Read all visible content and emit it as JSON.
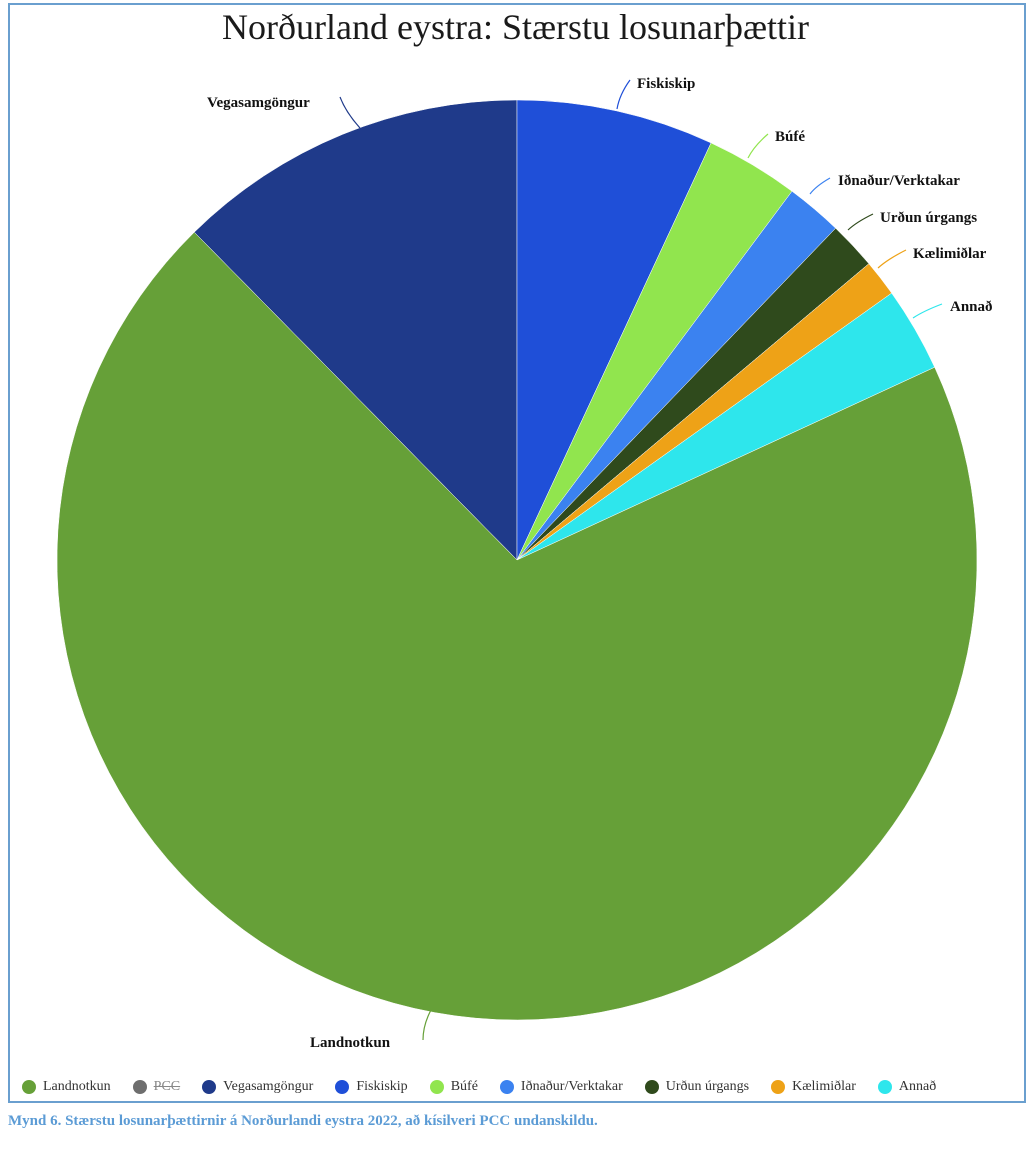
{
  "caption": "Mynd 6. Stærstu losunarþættirnir á Norðurlandi eystra 2022, að kísilveri PCC undanskildu.",
  "chart_data": {
    "type": "pie",
    "title": "Norðurland eystra: Stærstu losunarþættir",
    "legend_position": "bottom",
    "slices": [
      {
        "name": "Landnotkun",
        "value": 70.2,
        "color": "#66a038",
        "visible": true
      },
      {
        "name": "PCC",
        "value": 0,
        "color": "#6e6e6e",
        "visible": false
      },
      {
        "name": "Vegasamgöngur",
        "value": 12.5,
        "color": "#1f3a8a",
        "visible": true
      },
      {
        "name": "Fiskiskip",
        "value": 7.0,
        "color": "#1f4fd8",
        "visible": true
      },
      {
        "name": "Búfé",
        "value": 3.3,
        "color": "#91e54e",
        "visible": true
      },
      {
        "name": "Iðnaður/Verktakar",
        "value": 2.0,
        "color": "#3b82f0",
        "visible": true
      },
      {
        "name": "Urðun úrgangs",
        "value": 1.7,
        "color": "#2f4a1c",
        "visible": true
      },
      {
        "name": "Kælimiðlar",
        "value": 1.3,
        "color": "#eea217",
        "visible": true
      },
      {
        "name": "Annað",
        "value": 3.0,
        "color": "#2ee6ec",
        "visible": true
      }
    ]
  }
}
